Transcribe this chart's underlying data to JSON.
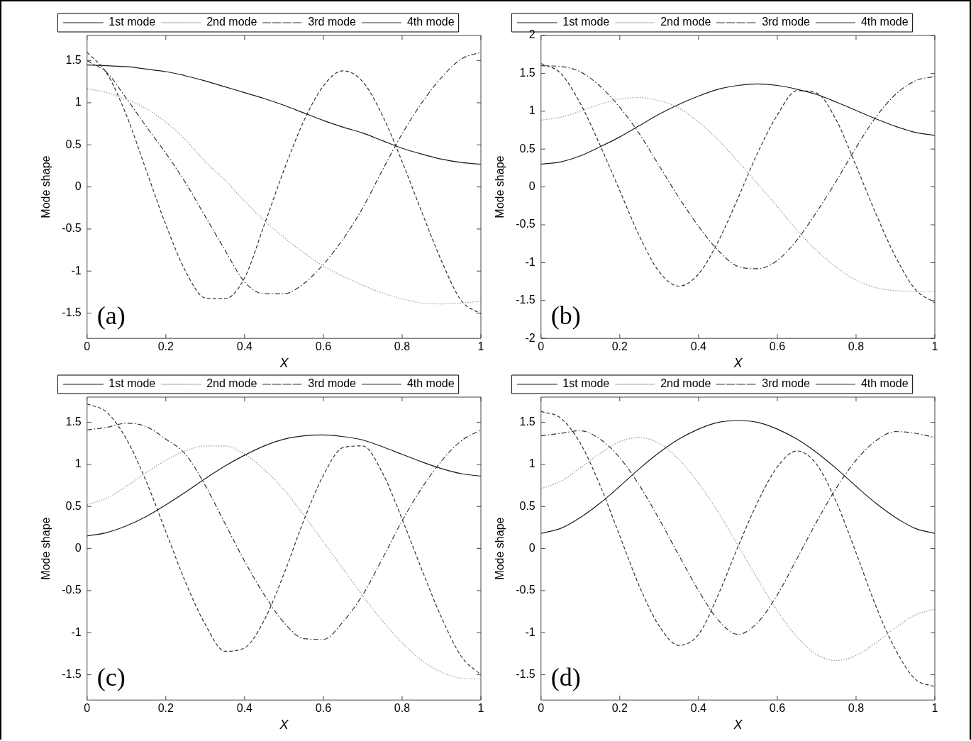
{
  "chart_data": [
    {
      "type": "line",
      "xlabel": "X",
      "ylabel": "Mode shape",
      "annotations": [
        "(a)"
      ],
      "legend": "top",
      "marker": "none",
      "grid": false,
      "x": [
        0,
        0.05,
        0.1,
        0.15,
        0.2,
        0.25,
        0.3,
        0.35,
        0.4,
        0.45,
        0.5,
        0.55,
        0.6,
        0.65,
        0.7,
        0.75,
        0.8,
        0.85,
        0.9,
        0.95,
        1
      ],
      "xlim": [
        0,
        1
      ],
      "xticks": [
        0,
        0.2,
        0.4,
        0.6,
        0.8,
        1
      ],
      "ylim": [
        -1.8,
        1.8
      ],
      "yticks": [
        -1.5,
        -1,
        -0.5,
        0,
        0.5,
        1,
        1.5
      ],
      "series": [
        {
          "name": "1st mode",
          "color": "#1a1a1a",
          "line_style": "solid",
          "values": [
            1.45,
            1.44,
            1.43,
            1.4,
            1.37,
            1.32,
            1.26,
            1.19,
            1.12,
            1.05,
            0.97,
            0.88,
            0.79,
            0.71,
            0.64,
            0.55,
            0.46,
            0.39,
            0.33,
            0.29,
            0.27
          ]
        },
        {
          "name": "2nd mode",
          "color": "#999999",
          "line_style": "dotted",
          "values": [
            1.17,
            1.12,
            1.04,
            0.93,
            0.77,
            0.56,
            0.3,
            0.08,
            -0.17,
            -0.4,
            -0.6,
            -0.78,
            -0.94,
            -1.06,
            -1.17,
            -1.26,
            -1.33,
            -1.38,
            -1.39,
            -1.38,
            -1.36
          ]
        },
        {
          "name": "3rd mode",
          "color": "#333333",
          "line_style": "dashdot",
          "values": [
            1.5,
            1.36,
            1.05,
            0.72,
            0.4,
            0.05,
            -0.35,
            -0.75,
            -1.13,
            -1.27,
            -1.27,
            -1.15,
            -0.92,
            -0.62,
            -0.25,
            0.2,
            0.63,
            1.0,
            1.3,
            1.52,
            1.6
          ]
        },
        {
          "name": "4th mode",
          "color": "#333333",
          "line_style": "dashed",
          "values": [
            1.6,
            1.35,
            0.85,
            0.2,
            -0.45,
            -1.0,
            -1.32,
            -1.33,
            -1.08,
            -0.45,
            0.2,
            0.78,
            1.2,
            1.38,
            1.25,
            0.85,
            0.3,
            -0.3,
            -0.88,
            -1.35,
            -1.51
          ]
        }
      ]
    },
    {
      "type": "line",
      "xlabel": "X",
      "ylabel": "Mode shape",
      "annotations": [
        "(b)"
      ],
      "legend": "top",
      "marker": "none",
      "grid": false,
      "x": [
        0,
        0.05,
        0.1,
        0.15,
        0.2,
        0.25,
        0.3,
        0.35,
        0.4,
        0.45,
        0.5,
        0.55,
        0.6,
        0.65,
        0.7,
        0.75,
        0.8,
        0.85,
        0.9,
        0.95,
        1
      ],
      "xlim": [
        0,
        1
      ],
      "xticks": [
        0,
        0.2,
        0.4,
        0.6,
        0.8,
        1
      ],
      "ylim": [
        -2,
        2
      ],
      "yticks": [
        -2,
        -1.5,
        -1,
        -0.5,
        0,
        0.5,
        1,
        1.5,
        2
      ],
      "series": [
        {
          "name": "1st mode",
          "color": "#1a1a1a",
          "line_style": "solid",
          "values": [
            0.3,
            0.33,
            0.41,
            0.53,
            0.66,
            0.81,
            0.96,
            1.09,
            1.2,
            1.29,
            1.34,
            1.36,
            1.34,
            1.29,
            1.22,
            1.12,
            1.01,
            0.9,
            0.8,
            0.72,
            0.68
          ]
        },
        {
          "name": "2nd mode",
          "color": "#999999",
          "line_style": "dotted",
          "values": [
            0.88,
            0.92,
            1.0,
            1.09,
            1.16,
            1.18,
            1.14,
            1.04,
            0.86,
            0.62,
            0.34,
            0.04,
            -0.26,
            -0.57,
            -0.84,
            -1.06,
            -1.23,
            -1.33,
            -1.37,
            -1.38,
            -1.38
          ]
        },
        {
          "name": "3rd mode",
          "color": "#333333",
          "line_style": "dashdot",
          "values": [
            1.6,
            1.59,
            1.52,
            1.33,
            1.05,
            0.7,
            0.28,
            -0.14,
            -0.52,
            -0.84,
            -1.05,
            -1.08,
            -0.97,
            -0.7,
            -0.33,
            0.08,
            0.52,
            0.92,
            1.22,
            1.4,
            1.46
          ]
        },
        {
          "name": "4th mode",
          "color": "#333333",
          "line_style": "dashed",
          "values": [
            1.63,
            1.5,
            1.1,
            0.55,
            -0.05,
            -0.65,
            -1.12,
            -1.31,
            -1.15,
            -0.72,
            -0.15,
            0.45,
            0.95,
            1.27,
            1.24,
            0.88,
            0.28,
            -0.35,
            -0.92,
            -1.35,
            -1.53
          ]
        }
      ]
    },
    {
      "type": "line",
      "xlabel": "X",
      "ylabel": "Mode shape",
      "annotations": [
        "(c)"
      ],
      "legend": "top",
      "marker": "none",
      "grid": false,
      "x": [
        0,
        0.05,
        0.1,
        0.15,
        0.2,
        0.25,
        0.3,
        0.35,
        0.4,
        0.45,
        0.5,
        0.55,
        0.6,
        0.65,
        0.7,
        0.75,
        0.8,
        0.85,
        0.9,
        0.95,
        1
      ],
      "xlim": [
        0,
        1
      ],
      "xticks": [
        0,
        0.2,
        0.4,
        0.6,
        0.8,
        1
      ],
      "ylim": [
        -1.8,
        1.8
      ],
      "yticks": [
        -1.5,
        -1,
        -0.5,
        0,
        0.5,
        1,
        1.5
      ],
      "series": [
        {
          "name": "1st mode",
          "color": "#1a1a1a",
          "line_style": "solid",
          "values": [
            0.15,
            0.19,
            0.27,
            0.38,
            0.52,
            0.67,
            0.83,
            0.98,
            1.11,
            1.22,
            1.3,
            1.34,
            1.35,
            1.33,
            1.29,
            1.21,
            1.12,
            1.03,
            0.95,
            0.89,
            0.86
          ]
        },
        {
          "name": "2nd mode",
          "color": "#999999",
          "line_style": "dotted",
          "values": [
            0.52,
            0.6,
            0.74,
            0.9,
            1.05,
            1.16,
            1.22,
            1.22,
            1.12,
            0.94,
            0.7,
            0.4,
            0.08,
            -0.24,
            -0.56,
            -0.86,
            -1.12,
            -1.33,
            -1.47,
            -1.54,
            -1.55
          ]
        },
        {
          "name": "3rd mode",
          "color": "#333333",
          "line_style": "dashdot",
          "values": [
            1.41,
            1.44,
            1.49,
            1.45,
            1.3,
            1.12,
            0.75,
            0.3,
            -0.15,
            -0.55,
            -0.88,
            -1.07,
            -1.08,
            -0.87,
            -0.55,
            -0.12,
            0.33,
            0.72,
            1.04,
            1.28,
            1.41
          ]
        },
        {
          "name": "4th mode",
          "color": "#333333",
          "line_style": "dashed",
          "values": [
            1.72,
            1.62,
            1.3,
            0.8,
            0.2,
            -0.4,
            -0.9,
            -1.22,
            -1.18,
            -0.85,
            -0.3,
            0.33,
            0.87,
            1.2,
            1.22,
            0.9,
            0.35,
            -0.25,
            -0.82,
            -1.28,
            -1.5
          ]
        }
      ]
    },
    {
      "type": "line",
      "xlabel": "X",
      "ylabel": "Mode shape",
      "annotations": [
        "(d)"
      ],
      "legend": "top",
      "marker": "none",
      "grid": false,
      "x": [
        0,
        0.05,
        0.1,
        0.15,
        0.2,
        0.25,
        0.3,
        0.35,
        0.4,
        0.45,
        0.5,
        0.55,
        0.6,
        0.65,
        0.7,
        0.75,
        0.8,
        0.85,
        0.9,
        0.95,
        1
      ],
      "xlim": [
        0,
        1
      ],
      "xticks": [
        0,
        0.2,
        0.4,
        0.6,
        0.8,
        1
      ],
      "ylim": [
        -1.8,
        1.8
      ],
      "yticks": [
        -1.5,
        -1,
        -0.5,
        0,
        0.5,
        1,
        1.5
      ],
      "series": [
        {
          "name": "1st mode",
          "color": "#1a1a1a",
          "line_style": "solid",
          "values": [
            0.18,
            0.24,
            0.37,
            0.54,
            0.74,
            0.95,
            1.14,
            1.3,
            1.42,
            1.5,
            1.52,
            1.5,
            1.42,
            1.3,
            1.14,
            0.95,
            0.74,
            0.54,
            0.37,
            0.24,
            0.18
          ]
        },
        {
          "name": "2nd mode",
          "color": "#999999",
          "line_style": "dotted",
          "values": [
            0.71,
            0.8,
            0.96,
            1.13,
            1.27,
            1.32,
            1.25,
            1.06,
            0.78,
            0.43,
            0.04,
            -0.36,
            -0.74,
            -1.05,
            -1.26,
            -1.33,
            -1.27,
            -1.12,
            -0.94,
            -0.79,
            -0.72
          ]
        },
        {
          "name": "3rd mode",
          "color": "#333333",
          "line_style": "dashdot",
          "values": [
            1.34,
            1.37,
            1.4,
            1.3,
            1.08,
            0.75,
            0.35,
            -0.08,
            -0.5,
            -0.85,
            -1.02,
            -0.88,
            -0.55,
            -0.12,
            0.32,
            0.72,
            1.05,
            1.28,
            1.39,
            1.37,
            1.32
          ]
        },
        {
          "name": "4th mode",
          "color": "#333333",
          "line_style": "dashed",
          "values": [
            1.63,
            1.55,
            1.25,
            0.75,
            0.15,
            -0.45,
            -0.92,
            -1.15,
            -1.02,
            -0.55,
            0.02,
            0.55,
            0.97,
            1.16,
            1.0,
            0.55,
            -0.05,
            -0.68,
            -1.2,
            -1.55,
            -1.64
          ]
        }
      ]
    }
  ]
}
